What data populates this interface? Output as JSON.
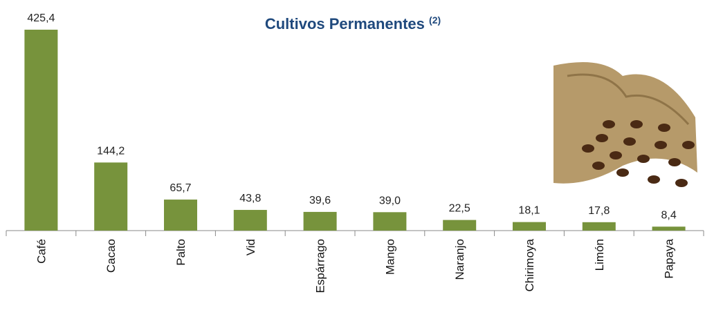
{
  "chart_data": {
    "type": "bar",
    "title": "Cultivos Permanentes",
    "title_note": "(2)",
    "categories": [
      "Café",
      "Cacao",
      "Palto",
      "Vid",
      "Espárrago",
      "Mango",
      "Naranjo",
      "Chirimoya",
      "Limón",
      "Papaya"
    ],
    "values": [
      425.4,
      144.2,
      65.7,
      43.8,
      39.6,
      39.0,
      22.5,
      18.1,
      17.8,
      8.4
    ],
    "value_labels": [
      "425,4",
      "144,2",
      "65,7",
      "43,8",
      "39,6",
      "39,0",
      "22,5",
      "18,1",
      "17,8",
      "8,4"
    ],
    "color": "#77933c"
  }
}
